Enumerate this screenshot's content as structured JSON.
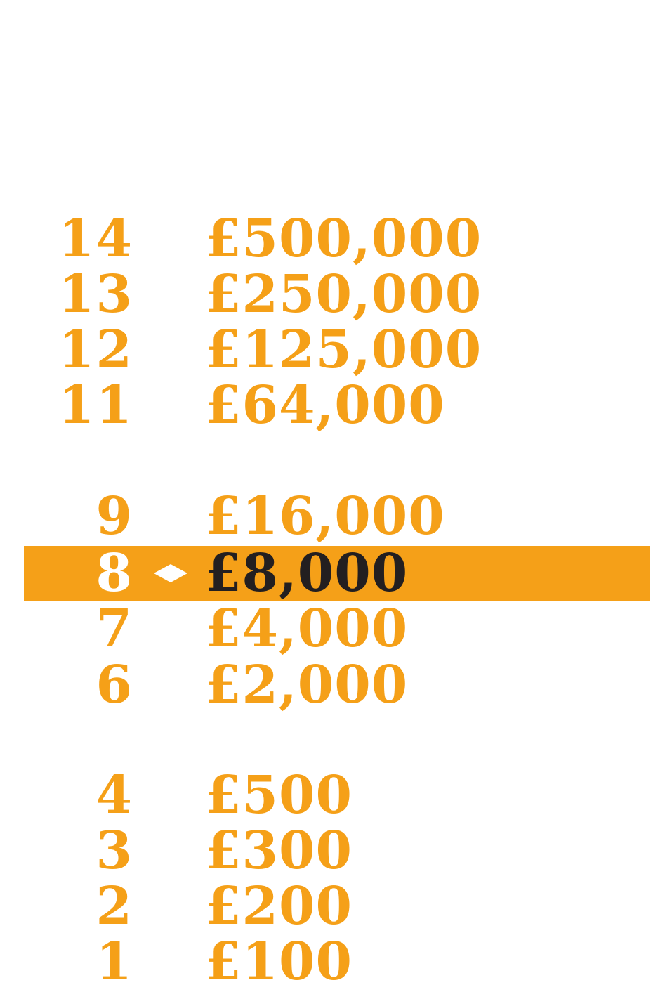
{
  "colors": {
    "accent": "#F5A018",
    "current_text": "#231F20",
    "marker": "#ffffff"
  },
  "ladder": {
    "current_level": "8",
    "marker_icon": "diamond-icon",
    "rows": [
      {
        "level": "14",
        "prize": "£500,000"
      },
      {
        "level": "13",
        "prize": "£250,000"
      },
      {
        "level": "12",
        "prize": "£125,000"
      },
      {
        "level": "11",
        "prize": "£64,000"
      },
      {
        "level": "9",
        "prize": "£16,000"
      },
      {
        "level": "8",
        "prize": "£8,000"
      },
      {
        "level": "7",
        "prize": "£4,000"
      },
      {
        "level": "6",
        "prize": "£2,000"
      },
      {
        "level": "4",
        "prize": "£500"
      },
      {
        "level": "3",
        "prize": "£300"
      },
      {
        "level": "2",
        "prize": "£200"
      },
      {
        "level": "1",
        "prize": "£100"
      }
    ]
  }
}
